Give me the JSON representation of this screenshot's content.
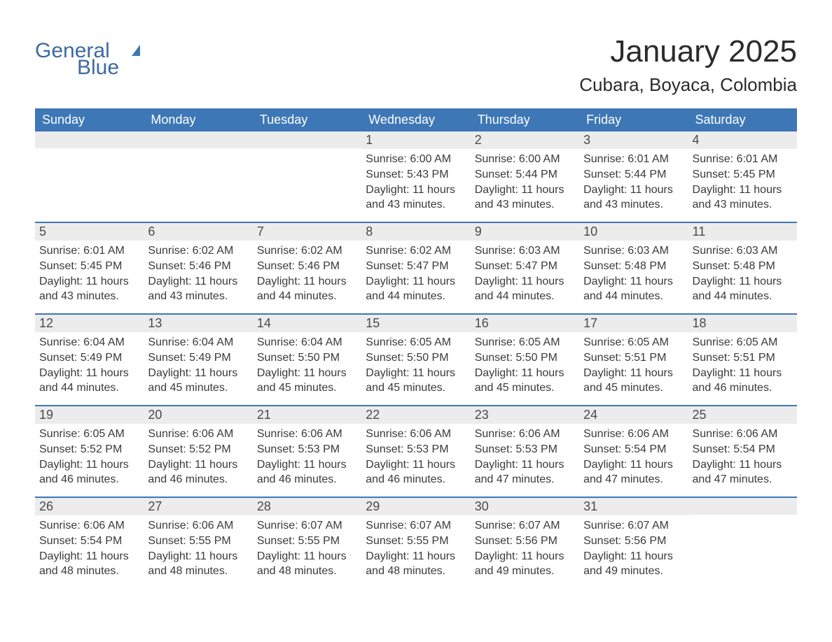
{
  "colors": {
    "header_bg": "#3d77b6",
    "header_text": "#ffffff",
    "daynum_band_bg": "#ececec",
    "week_separator": "#3d77b6",
    "body_text": "#3a3a3a",
    "page_bg": "#ffffff",
    "logo_color": "#3d6aa0"
  },
  "logo": {
    "line1": "General",
    "line2": "Blue"
  },
  "title": "January 2025",
  "location": "Cubara, Boyaca, Colombia",
  "dayHeaders": [
    "Sunday",
    "Monday",
    "Tuesday",
    "Wednesday",
    "Thursday",
    "Friday",
    "Saturday"
  ],
  "weeks": [
    [
      {
        "n": "",
        "sunrise": "",
        "sunset": "",
        "daylight": ""
      },
      {
        "n": "",
        "sunrise": "",
        "sunset": "",
        "daylight": ""
      },
      {
        "n": "",
        "sunrise": "",
        "sunset": "",
        "daylight": ""
      },
      {
        "n": "1",
        "sunrise": "Sunrise: 6:00 AM",
        "sunset": "Sunset: 5:43 PM",
        "daylight": "Daylight: 11 hours and 43 minutes."
      },
      {
        "n": "2",
        "sunrise": "Sunrise: 6:00 AM",
        "sunset": "Sunset: 5:44 PM",
        "daylight": "Daylight: 11 hours and 43 minutes."
      },
      {
        "n": "3",
        "sunrise": "Sunrise: 6:01 AM",
        "sunset": "Sunset: 5:44 PM",
        "daylight": "Daylight: 11 hours and 43 minutes."
      },
      {
        "n": "4",
        "sunrise": "Sunrise: 6:01 AM",
        "sunset": "Sunset: 5:45 PM",
        "daylight": "Daylight: 11 hours and 43 minutes."
      }
    ],
    [
      {
        "n": "5",
        "sunrise": "Sunrise: 6:01 AM",
        "sunset": "Sunset: 5:45 PM",
        "daylight": "Daylight: 11 hours and 43 minutes."
      },
      {
        "n": "6",
        "sunrise": "Sunrise: 6:02 AM",
        "sunset": "Sunset: 5:46 PM",
        "daylight": "Daylight: 11 hours and 43 minutes."
      },
      {
        "n": "7",
        "sunrise": "Sunrise: 6:02 AM",
        "sunset": "Sunset: 5:46 PM",
        "daylight": "Daylight: 11 hours and 44 minutes."
      },
      {
        "n": "8",
        "sunrise": "Sunrise: 6:02 AM",
        "sunset": "Sunset: 5:47 PM",
        "daylight": "Daylight: 11 hours and 44 minutes."
      },
      {
        "n": "9",
        "sunrise": "Sunrise: 6:03 AM",
        "sunset": "Sunset: 5:47 PM",
        "daylight": "Daylight: 11 hours and 44 minutes."
      },
      {
        "n": "10",
        "sunrise": "Sunrise: 6:03 AM",
        "sunset": "Sunset: 5:48 PM",
        "daylight": "Daylight: 11 hours and 44 minutes."
      },
      {
        "n": "11",
        "sunrise": "Sunrise: 6:03 AM",
        "sunset": "Sunset: 5:48 PM",
        "daylight": "Daylight: 11 hours and 44 minutes."
      }
    ],
    [
      {
        "n": "12",
        "sunrise": "Sunrise: 6:04 AM",
        "sunset": "Sunset: 5:49 PM",
        "daylight": "Daylight: 11 hours and 44 minutes."
      },
      {
        "n": "13",
        "sunrise": "Sunrise: 6:04 AM",
        "sunset": "Sunset: 5:49 PM",
        "daylight": "Daylight: 11 hours and 45 minutes."
      },
      {
        "n": "14",
        "sunrise": "Sunrise: 6:04 AM",
        "sunset": "Sunset: 5:50 PM",
        "daylight": "Daylight: 11 hours and 45 minutes."
      },
      {
        "n": "15",
        "sunrise": "Sunrise: 6:05 AM",
        "sunset": "Sunset: 5:50 PM",
        "daylight": "Daylight: 11 hours and 45 minutes."
      },
      {
        "n": "16",
        "sunrise": "Sunrise: 6:05 AM",
        "sunset": "Sunset: 5:50 PM",
        "daylight": "Daylight: 11 hours and 45 minutes."
      },
      {
        "n": "17",
        "sunrise": "Sunrise: 6:05 AM",
        "sunset": "Sunset: 5:51 PM",
        "daylight": "Daylight: 11 hours and 45 minutes."
      },
      {
        "n": "18",
        "sunrise": "Sunrise: 6:05 AM",
        "sunset": "Sunset: 5:51 PM",
        "daylight": "Daylight: 11 hours and 46 minutes."
      }
    ],
    [
      {
        "n": "19",
        "sunrise": "Sunrise: 6:05 AM",
        "sunset": "Sunset: 5:52 PM",
        "daylight": "Daylight: 11 hours and 46 minutes."
      },
      {
        "n": "20",
        "sunrise": "Sunrise: 6:06 AM",
        "sunset": "Sunset: 5:52 PM",
        "daylight": "Daylight: 11 hours and 46 minutes."
      },
      {
        "n": "21",
        "sunrise": "Sunrise: 6:06 AM",
        "sunset": "Sunset: 5:53 PM",
        "daylight": "Daylight: 11 hours and 46 minutes."
      },
      {
        "n": "22",
        "sunrise": "Sunrise: 6:06 AM",
        "sunset": "Sunset: 5:53 PM",
        "daylight": "Daylight: 11 hours and 46 minutes."
      },
      {
        "n": "23",
        "sunrise": "Sunrise: 6:06 AM",
        "sunset": "Sunset: 5:53 PM",
        "daylight": "Daylight: 11 hours and 47 minutes."
      },
      {
        "n": "24",
        "sunrise": "Sunrise: 6:06 AM",
        "sunset": "Sunset: 5:54 PM",
        "daylight": "Daylight: 11 hours and 47 minutes."
      },
      {
        "n": "25",
        "sunrise": "Sunrise: 6:06 AM",
        "sunset": "Sunset: 5:54 PM",
        "daylight": "Daylight: 11 hours and 47 minutes."
      }
    ],
    [
      {
        "n": "26",
        "sunrise": "Sunrise: 6:06 AM",
        "sunset": "Sunset: 5:54 PM",
        "daylight": "Daylight: 11 hours and 48 minutes."
      },
      {
        "n": "27",
        "sunrise": "Sunrise: 6:06 AM",
        "sunset": "Sunset: 5:55 PM",
        "daylight": "Daylight: 11 hours and 48 minutes."
      },
      {
        "n": "28",
        "sunrise": "Sunrise: 6:07 AM",
        "sunset": "Sunset: 5:55 PM",
        "daylight": "Daylight: 11 hours and 48 minutes."
      },
      {
        "n": "29",
        "sunrise": "Sunrise: 6:07 AM",
        "sunset": "Sunset: 5:55 PM",
        "daylight": "Daylight: 11 hours and 48 minutes."
      },
      {
        "n": "30",
        "sunrise": "Sunrise: 6:07 AM",
        "sunset": "Sunset: 5:56 PM",
        "daylight": "Daylight: 11 hours and 49 minutes."
      },
      {
        "n": "31",
        "sunrise": "Sunrise: 6:07 AM",
        "sunset": "Sunset: 5:56 PM",
        "daylight": "Daylight: 11 hours and 49 minutes."
      },
      {
        "n": "",
        "sunrise": "",
        "sunset": "",
        "daylight": ""
      }
    ]
  ]
}
